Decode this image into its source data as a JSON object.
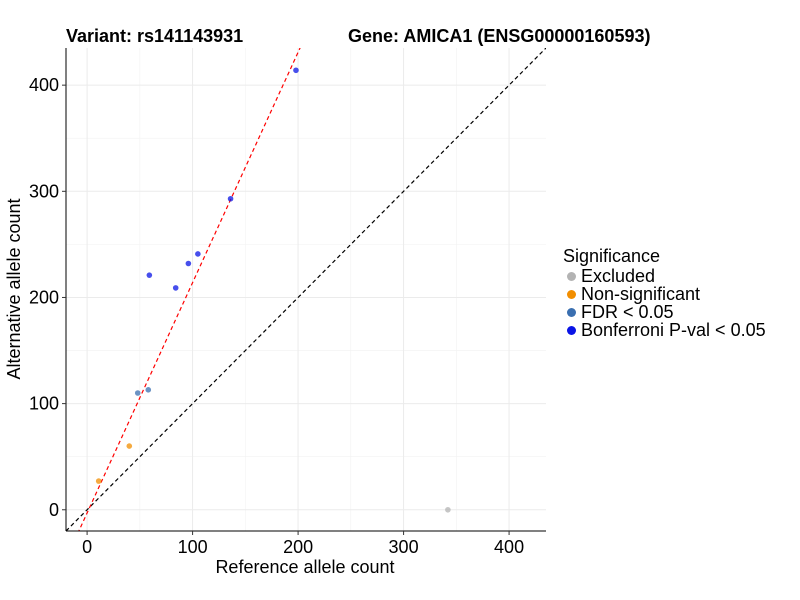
{
  "chart_data": {
    "type": "scatter",
    "title_left": "Variant: rs141143931",
    "title_right": "Gene: AMICA1 (ENSG00000160593)",
    "xlabel": "Reference allele count",
    "ylabel": "Alternative allele count",
    "xlim": [
      -20,
      435
    ],
    "ylim": [
      -20,
      435
    ],
    "xticks": [
      0,
      100,
      200,
      300,
      400
    ],
    "yticks": [
      0,
      100,
      200,
      300,
      400
    ],
    "grid": true,
    "legend": {
      "title": "Significance",
      "placement": "right",
      "items": [
        {
          "label": "Excluded",
          "color": "#b3b3b3"
        },
        {
          "label": "Non-significant",
          "color": "#f28e00"
        },
        {
          "label": "FDR < 0.05",
          "color": "#3a6fb0"
        },
        {
          "label": "Bonferroni P-val < 0.05",
          "color": "#0a14e6"
        }
      ]
    },
    "series": [
      {
        "category": "Excluded",
        "color": "#b3b3b3",
        "points": [
          [
            342,
            0
          ]
        ]
      },
      {
        "category": "Non-significant",
        "color": "#f28e00",
        "points": [
          [
            11,
            27
          ],
          [
            40,
            60
          ]
        ]
      },
      {
        "category": "FDR < 0.05",
        "color": "#3a6fb0",
        "points": [
          [
            48,
            110
          ],
          [
            58,
            113
          ]
        ]
      },
      {
        "category": "Bonferroni P-val < 0.05",
        "color": "#0a14e6",
        "points": [
          [
            59,
            221
          ],
          [
            84,
            209
          ],
          [
            96,
            232
          ],
          [
            105,
            241
          ],
          [
            136,
            293
          ],
          [
            198,
            414
          ]
        ]
      }
    ],
    "reference_lines": [
      {
        "style": "dashed",
        "color": "#000000",
        "slope": 1,
        "intercept": 0
      },
      {
        "style": "dashed",
        "color": "#ff0000",
        "slope": 2.17,
        "intercept": -3
      }
    ]
  }
}
